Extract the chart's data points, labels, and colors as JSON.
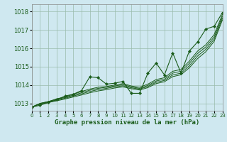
{
  "title": "Graphe pression niveau de la mer (hPa)",
  "bg_color": "#cfe8f0",
  "grid_color": "#99bbaa",
  "line_color": "#1a5c1a",
  "xmin": 0,
  "xmax": 23,
  "ymin": 1012.6,
  "ymax": 1018.4,
  "yticks": [
    1013,
    1014,
    1015,
    1016,
    1017,
    1018
  ],
  "xticks": [
    0,
    1,
    2,
    3,
    4,
    5,
    6,
    7,
    8,
    9,
    10,
    11,
    12,
    13,
    14,
    15,
    16,
    17,
    18,
    19,
    20,
    21,
    22,
    23
  ],
  "series_main": [
    1012.8,
    1012.9,
    1013.05,
    1013.2,
    1013.4,
    1013.5,
    1013.7,
    1014.45,
    1014.4,
    1014.05,
    1014.1,
    1014.2,
    1013.55,
    1013.55,
    1014.65,
    1015.2,
    1014.55,
    1015.75,
    1014.65,
    1015.85,
    1016.35,
    1017.05,
    1017.2,
    1017.95
  ],
  "series_smooth": [
    [
      1012.8,
      1013.0,
      1013.1,
      1013.25,
      1013.35,
      1013.5,
      1013.65,
      1013.78,
      1013.88,
      1013.92,
      1014.0,
      1014.08,
      1013.95,
      1013.88,
      1014.05,
      1014.3,
      1014.4,
      1014.75,
      1014.85,
      1015.3,
      1015.85,
      1016.2,
      1016.75,
      1017.85
    ],
    [
      1012.8,
      1013.0,
      1013.1,
      1013.22,
      1013.32,
      1013.45,
      1013.58,
      1013.72,
      1013.82,
      1013.88,
      1013.95,
      1014.02,
      1013.9,
      1013.82,
      1013.98,
      1014.22,
      1014.32,
      1014.65,
      1014.75,
      1015.18,
      1015.72,
      1016.08,
      1016.62,
      1017.75
    ],
    [
      1012.8,
      1012.98,
      1013.08,
      1013.18,
      1013.28,
      1013.4,
      1013.52,
      1013.65,
      1013.75,
      1013.82,
      1013.9,
      1013.96,
      1013.85,
      1013.78,
      1013.92,
      1014.15,
      1014.25,
      1014.55,
      1014.65,
      1015.05,
      1015.58,
      1015.95,
      1016.5,
      1017.65
    ],
    [
      1012.8,
      1012.96,
      1013.05,
      1013.14,
      1013.24,
      1013.35,
      1013.46,
      1013.58,
      1013.68,
      1013.75,
      1013.84,
      1013.9,
      1013.8,
      1013.73,
      1013.86,
      1014.08,
      1014.18,
      1014.46,
      1014.56,
      1014.94,
      1015.44,
      1015.82,
      1016.38,
      1017.55
    ]
  ]
}
